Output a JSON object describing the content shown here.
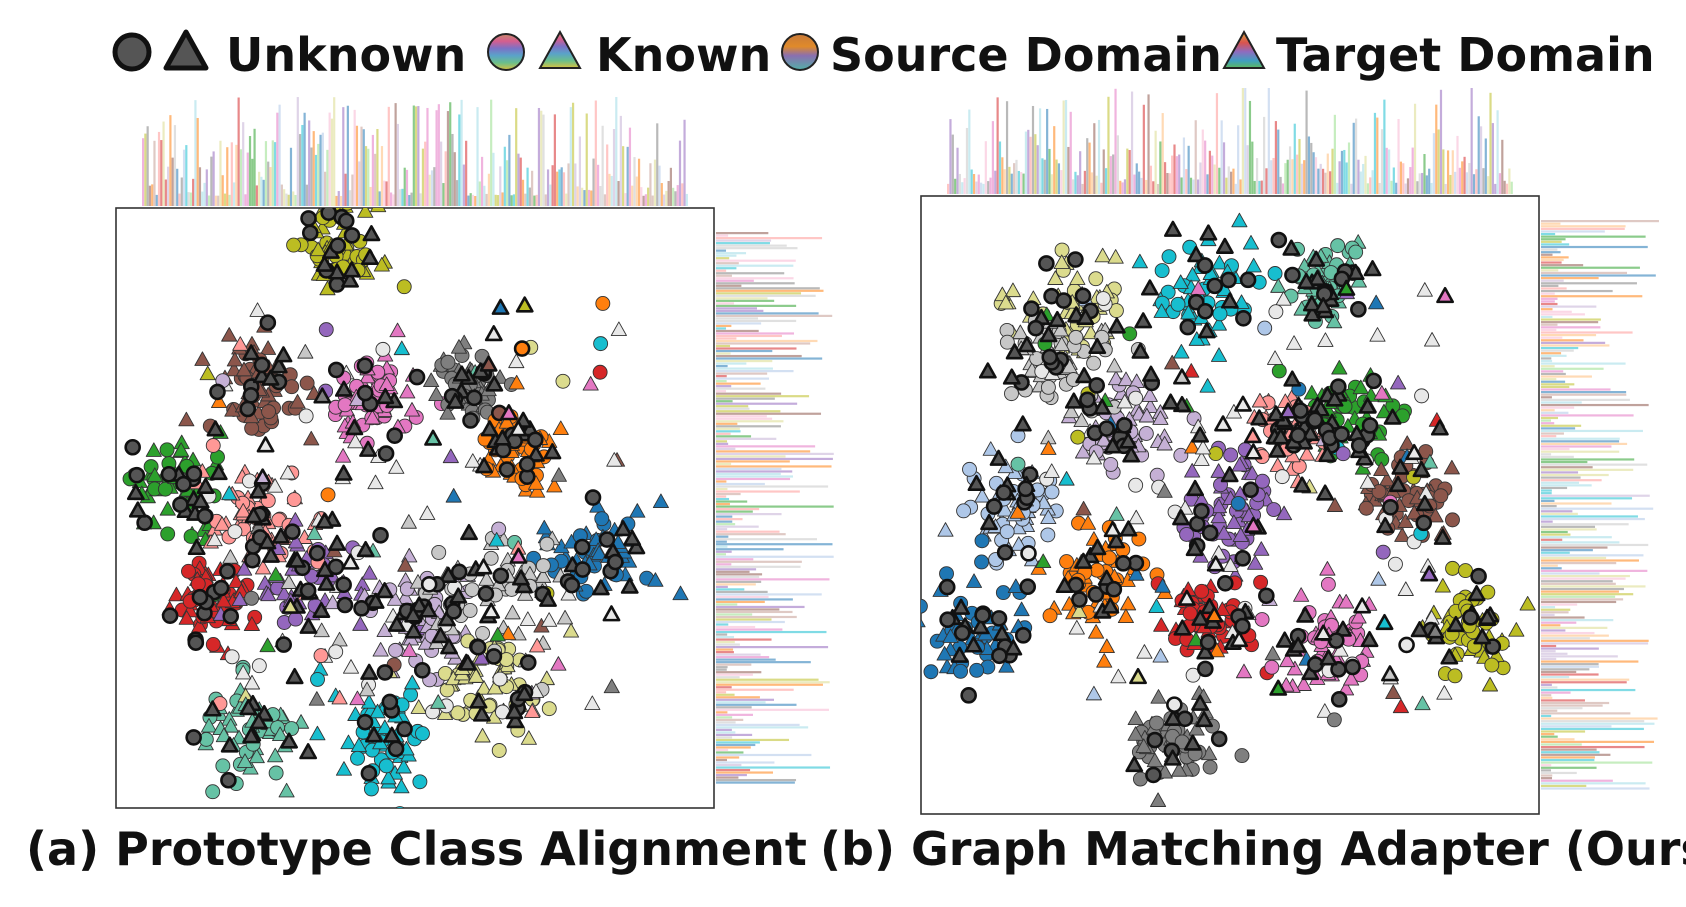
{
  "legend": {
    "unknown_label": "Unknown",
    "known_label": "Known",
    "source_label": "Source Domain",
    "target_label": "Target Domain"
  },
  "captions": {
    "a": "(a) Prototype Class Alignment",
    "b": "(b) Graph Matching Adapter (Ours)"
  },
  "palette": [
    "#2ca02c",
    "#d62728",
    "#9467bd",
    "#8c564b",
    "#e377c2",
    "#7f7f7f",
    "#bcbd22",
    "#17becf",
    "#1f77b4",
    "#ff7f0e",
    "#aec7e8",
    "#ffbb78",
    "#98df8a",
    "#ff9896",
    "#c5b0d5",
    "#c49c94",
    "#f7b6d2",
    "#c7c7c7",
    "#dbdb8d",
    "#9edae5"
  ],
  "unknown_color": "#555555",
  "chart_data": [
    {
      "type": "scatter",
      "title": "(a) Prototype Class Alignment",
      "xlim": [
        0,
        100
      ],
      "ylim": [
        0,
        100
      ],
      "marginal_histograms": "top-right",
      "clusters": [
        {
          "color": "#bcbd22",
          "x": 38,
          "y": 93,
          "spread": 4
        },
        {
          "color": "#8c564b",
          "x": 24,
          "y": 70,
          "spread": 5
        },
        {
          "color": "#e377c2",
          "x": 43,
          "y": 68,
          "spread": 5
        },
        {
          "color": "#7f7f7f",
          "x": 59,
          "y": 70,
          "spread": 3
        },
        {
          "color": "#ff7f0e",
          "x": 67,
          "y": 60,
          "spread": 4
        },
        {
          "color": "#2ca02c",
          "x": 10,
          "y": 53,
          "spread": 5
        },
        {
          "color": "#ff9896",
          "x": 23,
          "y": 48,
          "spread": 5
        },
        {
          "color": "#1f77b4",
          "x": 80,
          "y": 43,
          "spread": 5
        },
        {
          "color": "#d62728",
          "x": 16,
          "y": 35,
          "spread": 4
        },
        {
          "color": "#9467bd",
          "x": 33,
          "y": 37,
          "spread": 6
        },
        {
          "color": "#c5b0d5",
          "x": 51,
          "y": 32,
          "spread": 5
        },
        {
          "color": "#dbdb8d",
          "x": 62,
          "y": 20,
          "spread": 5
        },
        {
          "color": "#66c2a5",
          "x": 23,
          "y": 13,
          "spread": 5
        },
        {
          "color": "#17becf",
          "x": 45,
          "y": 12,
          "spread": 5
        },
        {
          "color": "#c7c7c7",
          "x": 63,
          "y": 37,
          "spread": 7
        }
      ]
    },
    {
      "type": "scatter",
      "title": "(b) Graph Matching Adapter (Ours)",
      "xlim": [
        0,
        100
      ],
      "ylim": [
        0,
        100
      ],
      "marginal_histograms": "top-right",
      "clusters": [
        {
          "color": "#dbdb8d",
          "x": 24,
          "y": 82,
          "spread": 5
        },
        {
          "color": "#17becf",
          "x": 45,
          "y": 84,
          "spread": 6
        },
        {
          "color": "#66c2a5",
          "x": 65,
          "y": 86,
          "spread": 4
        },
        {
          "color": "#c5b0d5",
          "x": 33,
          "y": 63,
          "spread": 5
        },
        {
          "color": "#2ca02c",
          "x": 69,
          "y": 64,
          "spread": 5
        },
        {
          "color": "#ff9896",
          "x": 60,
          "y": 62,
          "spread": 4
        },
        {
          "color": "#9467bd",
          "x": 50,
          "y": 48,
          "spread": 5
        },
        {
          "color": "#8c564b",
          "x": 78,
          "y": 52,
          "spread": 5
        },
        {
          "color": "#aec7e8",
          "x": 14,
          "y": 50,
          "spread": 5
        },
        {
          "color": "#ff7f0e",
          "x": 29,
          "y": 38,
          "spread": 5
        },
        {
          "color": "#1f77b4",
          "x": 9,
          "y": 30,
          "spread": 5
        },
        {
          "color": "#d62728",
          "x": 47,
          "y": 32,
          "spread": 4
        },
        {
          "color": "#e377c2",
          "x": 66,
          "y": 28,
          "spread": 5
        },
        {
          "color": "#bcbd22",
          "x": 89,
          "y": 30,
          "spread": 4
        },
        {
          "color": "#7f7f7f",
          "x": 41,
          "y": 12,
          "spread": 4
        },
        {
          "color": "#c7c7c7",
          "x": 22,
          "y": 74,
          "spread": 6
        }
      ]
    }
  ]
}
